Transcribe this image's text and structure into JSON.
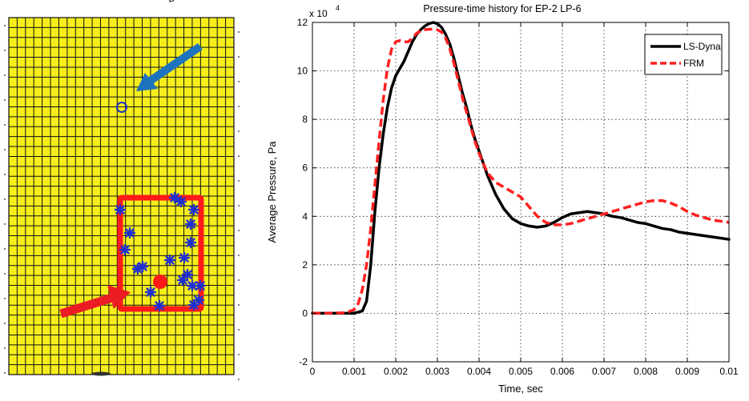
{
  "figure": {
    "caption_fragment": "g"
  },
  "mesh": {
    "background_color": "#f5ee1c",
    "grid_color": "#111111",
    "columns": 27,
    "rows": 36,
    "blue_arrow_color": "#1e73be",
    "red_arrow_color": "#ec1c24",
    "marker_color": "#2030d0",
    "region_color": "#ff1a1a"
  },
  "chart_data": {
    "type": "line",
    "title": "Pressure-time history for EP-2 LP-6",
    "xlabel": "Time, sec",
    "ylabel": "Average Pressure, Pa",
    "y_exponent_label": "x 10",
    "y_exponent_power": "4",
    "xlim": [
      0,
      0.01
    ],
    "ylim": [
      -2,
      12
    ],
    "y_units_scale": 10000,
    "x_ticks": [
      "0",
      "0.001",
      "0.002",
      "0.003",
      "0.004",
      "0.005",
      "0.006",
      "0.007",
      "0.008",
      "0.009",
      "0.01"
    ],
    "y_ticks": [
      "-2",
      "0",
      "2",
      "4",
      "6",
      "8",
      "10",
      "12"
    ],
    "grid": true,
    "legend_position": "top-right",
    "series": [
      {
        "name": "LS-Dyna",
        "color": "#000000",
        "style": "solid",
        "x": [
          0,
          0.001,
          0.0011,
          0.0012,
          0.0013,
          0.0014,
          0.0015,
          0.0016,
          0.0017,
          0.0018,
          0.0019,
          0.002,
          0.0021,
          0.0022,
          0.0023,
          0.0024,
          0.0025,
          0.0026,
          0.0027,
          0.0028,
          0.0029,
          0.003,
          0.0031,
          0.0032,
          0.0033,
          0.0034,
          0.0035,
          0.0036,
          0.0037,
          0.0038,
          0.0039,
          0.004,
          0.0042,
          0.0044,
          0.0046,
          0.0048,
          0.005,
          0.0052,
          0.0054,
          0.0056,
          0.0058,
          0.006,
          0.0062,
          0.0064,
          0.0066,
          0.0068,
          0.007,
          0.0072,
          0.0074,
          0.0076,
          0.0078,
          0.008,
          0.0082,
          0.0084,
          0.0086,
          0.0088,
          0.009,
          0.0092,
          0.0094,
          0.0096,
          0.0098,
          0.01
        ],
        "y": [
          0,
          0,
          0.05,
          0.1,
          0.5,
          2.0,
          4.2,
          6.0,
          7.4,
          8.5,
          9.3,
          9.8,
          10.1,
          10.4,
          10.8,
          11.2,
          11.5,
          11.7,
          11.85,
          11.95,
          12.0,
          11.95,
          11.8,
          11.5,
          11.1,
          10.5,
          9.8,
          9.1,
          8.5,
          7.8,
          7.2,
          6.7,
          5.7,
          4.9,
          4.3,
          3.9,
          3.7,
          3.6,
          3.55,
          3.6,
          3.75,
          3.95,
          4.1,
          4.15,
          4.2,
          4.15,
          4.1,
          4.0,
          3.95,
          3.85,
          3.75,
          3.7,
          3.6,
          3.5,
          3.45,
          3.35,
          3.3,
          3.25,
          3.2,
          3.15,
          3.1,
          3.05
        ]
      },
      {
        "name": "FRM",
        "color": "#ff2020",
        "style": "dashed",
        "x": [
          0,
          0.0008,
          0.001,
          0.0011,
          0.0012,
          0.0013,
          0.0014,
          0.0015,
          0.0016,
          0.0017,
          0.0018,
          0.0019,
          0.002,
          0.0021,
          0.0022,
          0.0023,
          0.0024,
          0.0025,
          0.0026,
          0.0027,
          0.0028,
          0.0029,
          0.003,
          0.0031,
          0.0032,
          0.0033,
          0.0034,
          0.0035,
          0.0036,
          0.0037,
          0.0038,
          0.0039,
          0.004,
          0.0042,
          0.0044,
          0.0046,
          0.0048,
          0.005,
          0.0052,
          0.0054,
          0.0056,
          0.0058,
          0.006,
          0.0062,
          0.0064,
          0.0066,
          0.0068,
          0.007,
          0.0072,
          0.0074,
          0.0076,
          0.0078,
          0.008,
          0.0082,
          0.0084,
          0.0086,
          0.0088,
          0.009,
          0.0092,
          0.0094,
          0.0096,
          0.0098,
          0.01
        ],
        "y": [
          0,
          0.02,
          0.15,
          0.4,
          1.0,
          2.0,
          3.5,
          5.3,
          7.1,
          8.8,
          10.1,
          10.9,
          11.2,
          11.25,
          11.2,
          11.2,
          11.35,
          11.55,
          11.65,
          11.7,
          11.72,
          11.72,
          11.7,
          11.6,
          11.35,
          10.9,
          10.3,
          9.6,
          8.9,
          8.3,
          7.7,
          7.1,
          6.6,
          5.8,
          5.4,
          5.2,
          5.0,
          4.8,
          4.4,
          4.0,
          3.75,
          3.65,
          3.65,
          3.7,
          3.8,
          3.9,
          4.0,
          4.1,
          4.2,
          4.3,
          4.4,
          4.5,
          4.6,
          4.65,
          4.65,
          4.55,
          4.4,
          4.2,
          4.05,
          3.95,
          3.85,
          3.8,
          3.75
        ]
      }
    ]
  }
}
